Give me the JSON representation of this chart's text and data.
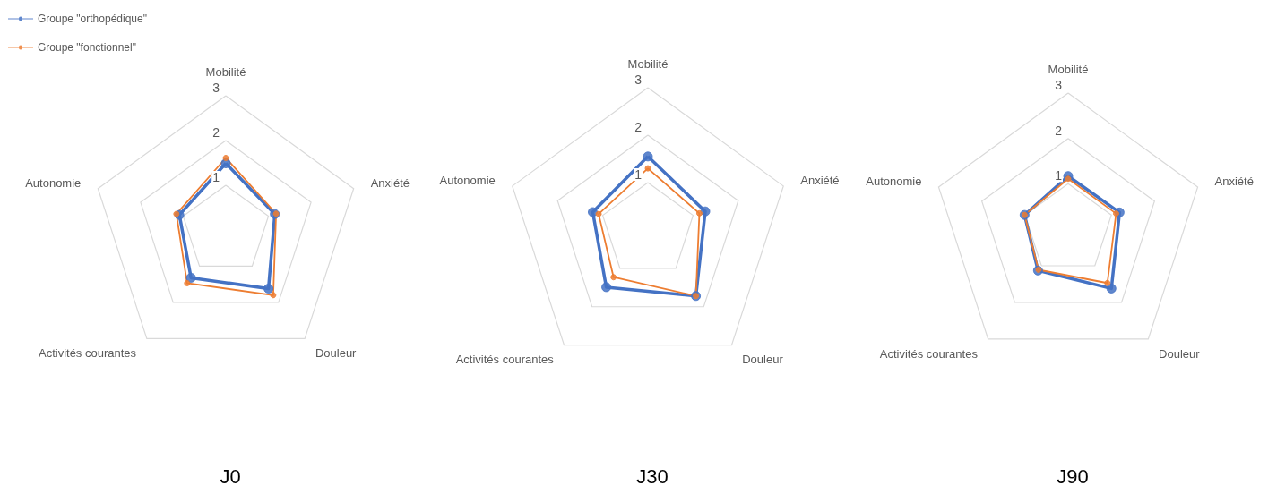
{
  "chart_data": [
    {
      "type": "radar",
      "title": "J0",
      "categories": [
        "Mobilité",
        "Anxiété",
        "Douleur",
        "Activités courantes",
        "Autonomie"
      ],
      "ylim": [
        0,
        3
      ],
      "yticks": [
        1,
        2,
        3
      ],
      "legend": "top left",
      "marker": "circle",
      "series": [
        {
          "name": "Groupe \"orthopédique\"",
          "color": "#4472c4",
          "values": [
            1.49,
            1.15,
            1.62,
            1.32,
            1.09
          ]
        },
        {
          "name": "Groupe \"fonctionnel\"",
          "color": "#ed7d31",
          "values": [
            1.61,
            1.18,
            1.8,
            1.47,
            1.16
          ]
        }
      ]
    },
    {
      "type": "radar",
      "title": "J30",
      "categories": [
        "Mobilité",
        "Anxiété",
        "Douleur",
        "Activités courantes",
        "Autonomie"
      ],
      "ylim": [
        0,
        3
      ],
      "yticks": [
        1,
        2,
        3
      ],
      "marker": "circle",
      "series": [
        {
          "color": "#4472c4",
          "values": [
            1.55,
            1.27,
            1.72,
            1.49,
            1.22
          ]
        },
        {
          "color": "#ed7d31",
          "values": [
            1.3,
            1.14,
            1.72,
            1.23,
            1.09
          ]
        }
      ]
    },
    {
      "type": "radar",
      "title": "J90",
      "categories": [
        "Mobilité",
        "Anxiété",
        "Douleur",
        "Activités courantes",
        "Autonomie"
      ],
      "ylim": [
        0,
        3
      ],
      "yticks": [
        1,
        2,
        3
      ],
      "marker": "circle",
      "series": [
        {
          "color": "#4472c4",
          "values": [
            1.17,
            1.19,
            1.62,
            1.13,
            1.01
          ]
        },
        {
          "color": "#ed7d31",
          "values": [
            1.11,
            1.11,
            1.47,
            1.11,
            1.01
          ]
        }
      ]
    }
  ]
}
